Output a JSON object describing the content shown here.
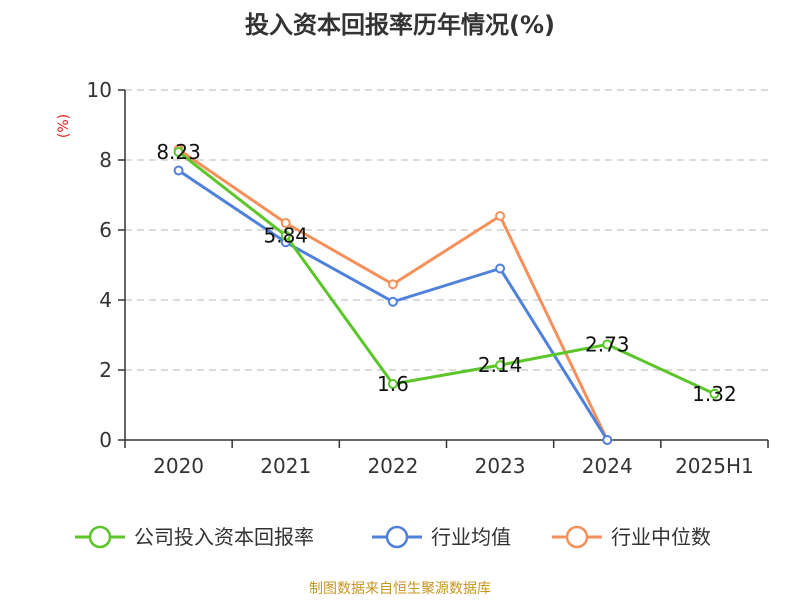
{
  "chart_data": {
    "type": "line",
    "title": "投入资本回报率历年情况(%)",
    "ylabel": "(%)",
    "categories": [
      "2020",
      "2021",
      "2022",
      "2023",
      "2024",
      "2025H1"
    ],
    "ylim": [
      0,
      10
    ],
    "yticks": [
      0,
      2,
      4,
      6,
      8,
      10
    ],
    "grid": true,
    "legend_position": "bottom",
    "series": [
      {
        "name": "公司投入资本回报率",
        "color": "#5cc52a",
        "values": [
          8.23,
          5.84,
          1.6,
          2.14,
          2.73,
          1.32
        ],
        "labels": [
          "8.23",
          "5.84",
          "1.6",
          "2.14",
          "2.73",
          "1.32"
        ]
      },
      {
        "name": "行业均值",
        "color": "#4f81dc",
        "values": [
          7.7,
          5.65,
          3.95,
          4.9,
          0,
          null
        ]
      },
      {
        "name": "行业中位数",
        "color": "#f5905b",
        "values": [
          8.3,
          6.2,
          4.45,
          6.4,
          0,
          null
        ]
      }
    ]
  },
  "source": "制图数据来自恒生聚源数据库"
}
